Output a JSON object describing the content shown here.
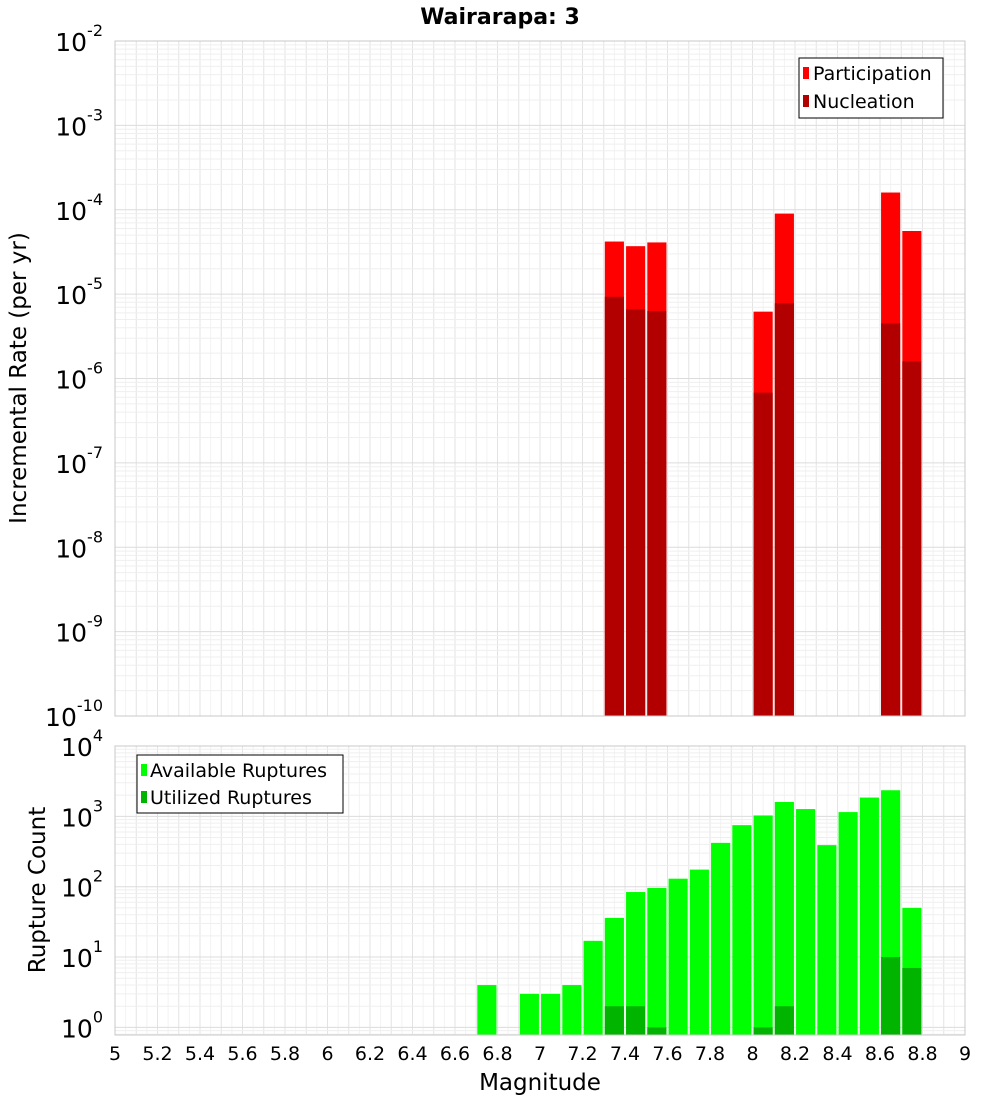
{
  "figure": {
    "title": "Wairarapa: 3"
  },
  "chart_data": [
    {
      "type": "bar",
      "name": "top",
      "ylabel": "Incremental Rate (per yr)",
      "xlabel": "",
      "yscale": "log",
      "ylim": [
        1e-10,
        0.01
      ],
      "xlim": [
        5,
        9
      ],
      "y_ticks": [
        {
          "base": "10",
          "exp": "-10",
          "value": 1e-10
        },
        {
          "base": "10",
          "exp": "-9",
          "value": 1e-09
        },
        {
          "base": "10",
          "exp": "-8",
          "value": 1e-08
        },
        {
          "base": "10",
          "exp": "-7",
          "value": 1e-07
        },
        {
          "base": "10",
          "exp": "-6",
          "value": 1e-06
        },
        {
          "base": "10",
          "exp": "-5",
          "value": 1e-05
        },
        {
          "base": "10",
          "exp": "-4",
          "value": 0.0001
        },
        {
          "base": "10",
          "exp": "-3",
          "value": 0.001
        },
        {
          "base": "10",
          "exp": "-2",
          "value": 0.01
        }
      ],
      "grid": true,
      "legend_position": "top-right",
      "bar_width": 0.09,
      "series": [
        {
          "name": "Participation",
          "color": "#ff0000",
          "points": [
            {
              "x": 7.35,
              "y": 4.2e-05
            },
            {
              "x": 7.45,
              "y": 3.7e-05
            },
            {
              "x": 7.55,
              "y": 4.1e-05
            },
            {
              "x": 8.05,
              "y": 6.2e-06
            },
            {
              "x": 8.15,
              "y": 9e-05
            },
            {
              "x": 8.65,
              "y": 0.00016
            },
            {
              "x": 8.75,
              "y": 5.6e-05
            }
          ]
        },
        {
          "name": "Nucleation",
          "color": "#b20000",
          "points": [
            {
              "x": 7.35,
              "y": 9.3e-06
            },
            {
              "x": 7.45,
              "y": 6.6e-06
            },
            {
              "x": 7.55,
              "y": 6.3e-06
            },
            {
              "x": 8.05,
              "y": 6.8e-07
            },
            {
              "x": 8.15,
              "y": 7.8e-06
            },
            {
              "x": 8.65,
              "y": 4.5e-06
            },
            {
              "x": 8.75,
              "y": 1.6e-06
            }
          ]
        }
      ]
    },
    {
      "type": "bar",
      "name": "bottom",
      "ylabel": "Rupture Count",
      "xlabel": "Magnitude",
      "yscale": "log",
      "ylim": [
        0.78,
        10000
      ],
      "xlim": [
        5,
        9
      ],
      "y_ticks": [
        {
          "base": "10",
          "exp": "0",
          "value": 1
        },
        {
          "base": "10",
          "exp": "1",
          "value": 10
        },
        {
          "base": "10",
          "exp": "2",
          "value": 100
        },
        {
          "base": "10",
          "exp": "3",
          "value": 1000
        },
        {
          "base": "10",
          "exp": "4",
          "value": 10000
        }
      ],
      "x_ticks": [
        "5",
        "5.2",
        "5.4",
        "5.6",
        "5.8",
        "6",
        "6.2",
        "6.4",
        "6.6",
        "6.8",
        "7",
        "7.2",
        "7.4",
        "7.6",
        "7.8",
        "8",
        "8.2",
        "8.4",
        "8.6",
        "8.8",
        "9"
      ],
      "grid": true,
      "legend_position": "top-left",
      "bar_width": 0.09,
      "series": [
        {
          "name": "Available Ruptures",
          "color": "#00ff00",
          "points": [
            {
              "x": 6.75,
              "y": 4
            },
            {
              "x": 6.95,
              "y": 3
            },
            {
              "x": 7.05,
              "y": 3
            },
            {
              "x": 7.15,
              "y": 4
            },
            {
              "x": 7.25,
              "y": 17
            },
            {
              "x": 7.35,
              "y": 36
            },
            {
              "x": 7.45,
              "y": 84
            },
            {
              "x": 7.55,
              "y": 96
            },
            {
              "x": 7.65,
              "y": 130
            },
            {
              "x": 7.75,
              "y": 175
            },
            {
              "x": 7.85,
              "y": 420
            },
            {
              "x": 7.95,
              "y": 750
            },
            {
              "x": 8.05,
              "y": 1030
            },
            {
              "x": 8.15,
              "y": 1600
            },
            {
              "x": 8.25,
              "y": 1270
            },
            {
              "x": 8.35,
              "y": 390
            },
            {
              "x": 8.45,
              "y": 1150
            },
            {
              "x": 8.55,
              "y": 1850
            },
            {
              "x": 8.65,
              "y": 2350
            },
            {
              "x": 8.75,
              "y": 50
            }
          ]
        },
        {
          "name": "Utilized Ruptures",
          "color": "#00b400",
          "points": [
            {
              "x": 7.35,
              "y": 2
            },
            {
              "x": 7.45,
              "y": 2
            },
            {
              "x": 7.55,
              "y": 1
            },
            {
              "x": 8.05,
              "y": 1
            },
            {
              "x": 8.15,
              "y": 2
            },
            {
              "x": 8.65,
              "y": 10
            },
            {
              "x": 8.75,
              "y": 7
            }
          ]
        }
      ]
    }
  ]
}
